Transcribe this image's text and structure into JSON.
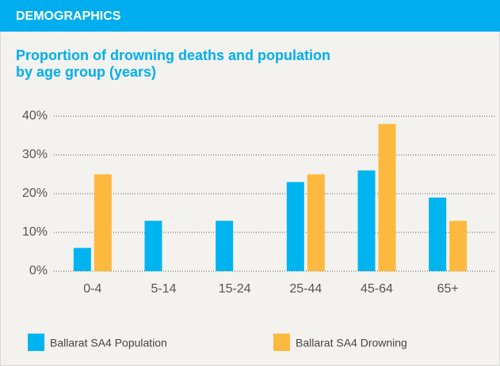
{
  "header": "DEMOGRAPHICS",
  "chart_data": {
    "type": "bar",
    "title": [
      "Proportion of drowning deaths and population",
      "by age group (years)"
    ],
    "categories": [
      "0-4",
      "5-14",
      "15-24",
      "25-44",
      "45-64",
      "65+"
    ],
    "series": [
      {
        "name": "Ballarat SA4 Population",
        "color": "#00b5ef",
        "values": [
          6,
          13,
          13,
          23,
          26,
          19
        ]
      },
      {
        "name": "Ballarat SA4 Drowning",
        "color": "#fdb93f",
        "values": [
          25,
          0,
          0,
          25,
          38,
          13
        ]
      }
    ],
    "ylim": [
      0,
      40
    ],
    "yticks": [
      {
        "value": 0,
        "label": "0%"
      },
      {
        "value": 10,
        "label": "10%"
      },
      {
        "value": 20,
        "label": "20%"
      },
      {
        "value": 30,
        "label": "30%"
      },
      {
        "value": 40,
        "label": "40%"
      }
    ],
    "grid": true
  }
}
